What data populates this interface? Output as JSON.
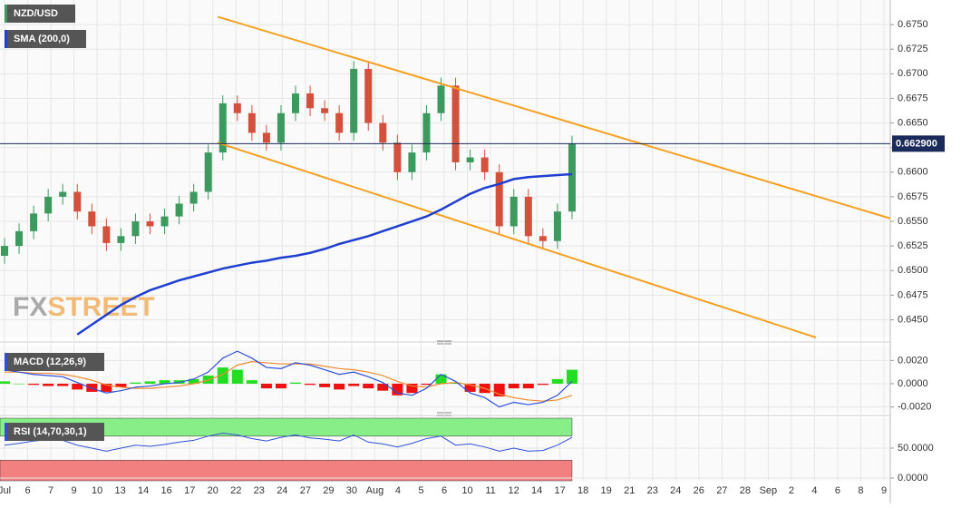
{
  "chart_data": [
    {
      "type": "candlestick",
      "title": "NZD/USD",
      "ylim": [
        0.6432,
        0.6775
      ],
      "yticks": [
        {
          "value": 0.645,
          "label": "0.6450"
        },
        {
          "value": 0.6475,
          "label": "0.6475"
        },
        {
          "value": 0.65,
          "label": "0.6500"
        },
        {
          "value": 0.6525,
          "label": "0.6525"
        },
        {
          "value": 0.655,
          "label": "0.6550"
        },
        {
          "value": 0.6575,
          "label": "0.6575"
        },
        {
          "value": 0.66,
          "label": "0.6600"
        },
        {
          "value": 0.6625,
          "label": "0.6625"
        },
        {
          "value": 0.665,
          "label": "0.6650"
        },
        {
          "value": 0.6675,
          "label": "0.6675"
        },
        {
          "value": 0.67,
          "label": "0.6700"
        },
        {
          "value": 0.6725,
          "label": "0.6725"
        },
        {
          "value": 0.675,
          "label": "0.6750"
        }
      ],
      "x_labels": [
        "Jul",
        "6",
        "7",
        "9",
        "10",
        "13",
        "14",
        "16",
        "17",
        "20",
        "22",
        "23",
        "24",
        "27",
        "29",
        "30",
        "Aug",
        "4",
        "5",
        "6",
        "10",
        "11",
        "12",
        "14",
        "17",
        "18",
        "19",
        "21",
        "23",
        "24",
        "26",
        "27",
        "28",
        "Sep",
        "2",
        "4",
        "6",
        "8",
        "9"
      ],
      "open": [
        0.6515,
        0.6525,
        0.654,
        0.6558,
        0.6575,
        0.658,
        0.656,
        0.6545,
        0.6528,
        0.6535,
        0.655,
        0.6545,
        0.6555,
        0.6568,
        0.658,
        0.662,
        0.667,
        0.666,
        0.664,
        0.663,
        0.666,
        0.668,
        0.6665,
        0.666,
        0.664,
        0.6705,
        0.665,
        0.663,
        0.66,
        0.662,
        0.666,
        0.6688,
        0.661,
        0.6615,
        0.66,
        0.6545,
        0.6575,
        0.6535,
        0.653,
        0.656
      ],
      "high": [
        0.6533,
        0.6548,
        0.6566,
        0.6583,
        0.6588,
        0.6588,
        0.6568,
        0.6553,
        0.6543,
        0.6558,
        0.6558,
        0.6563,
        0.6576,
        0.6588,
        0.6628,
        0.6678,
        0.6678,
        0.6668,
        0.6648,
        0.6668,
        0.6688,
        0.6688,
        0.6673,
        0.6668,
        0.6713,
        0.6713,
        0.6658,
        0.6638,
        0.6628,
        0.6668,
        0.6696,
        0.6696,
        0.6623,
        0.6623,
        0.6608,
        0.6583,
        0.6583,
        0.6543,
        0.6568,
        0.6637
      ],
      "low": [
        0.6507,
        0.6517,
        0.6532,
        0.655,
        0.6567,
        0.6552,
        0.6537,
        0.652,
        0.652,
        0.6527,
        0.6537,
        0.6537,
        0.6547,
        0.656,
        0.6572,
        0.6612,
        0.6652,
        0.6632,
        0.6622,
        0.6622,
        0.6652,
        0.6657,
        0.6652,
        0.6632,
        0.6632,
        0.6642,
        0.6622,
        0.6592,
        0.6592,
        0.6612,
        0.6652,
        0.6602,
        0.6602,
        0.6592,
        0.6537,
        0.6537,
        0.6527,
        0.6522,
        0.6522,
        0.6552
      ],
      "close": [
        0.6525,
        0.654,
        0.6558,
        0.6575,
        0.658,
        0.656,
        0.6545,
        0.6528,
        0.6535,
        0.655,
        0.6545,
        0.6555,
        0.6568,
        0.658,
        0.662,
        0.667,
        0.666,
        0.664,
        0.663,
        0.666,
        0.668,
        0.6665,
        0.666,
        0.664,
        0.6705,
        0.665,
        0.663,
        0.66,
        0.662,
        0.666,
        0.6688,
        0.661,
        0.6615,
        0.66,
        0.6545,
        0.6575,
        0.6535,
        0.653,
        0.656,
        0.6629
      ],
      "up_color": "#3c9a5f",
      "down_color": "#d2503c",
      "series": [
        {
          "name": "SMA (200,0)",
          "color": "#1f3fd0",
          "values": [
            null,
            null,
            null,
            null,
            null,
            0.6435,
            0.6445,
            0.6455,
            0.6465,
            0.6473,
            0.648,
            0.6485,
            0.649,
            0.6494,
            0.6498,
            0.6502,
            0.6505,
            0.6508,
            0.651,
            0.6513,
            0.6515,
            0.6518,
            0.6522,
            0.6527,
            0.6531,
            0.6535,
            0.654,
            0.6545,
            0.655,
            0.6555,
            0.6562,
            0.657,
            0.6578,
            0.6584,
            0.6588,
            0.6593,
            0.6595,
            0.6596,
            0.6597,
            0.6598
          ]
        }
      ],
      "trendlines": [
        {
          "color": "#f5a020",
          "start": 0.6758,
          "end": 0.6537
        },
        {
          "color": "#f5a020",
          "start": 0.663,
          "end": 0.6432
        }
      ],
      "last_price": {
        "value": 0.6629,
        "label": "0.662900"
      },
      "watermark": [
        "FX",
        "STREET"
      ],
      "grid": true
    },
    {
      "type": "macd",
      "title": "MACD (12,26,9)",
      "ylim": [
        -0.0025,
        0.0032
      ],
      "yticks": [
        {
          "value": 0.002,
          "label": "0.0020"
        },
        {
          "value": 0,
          "label": "0.0000"
        },
        {
          "value": -0.002,
          "label": "-0.0020"
        }
      ],
      "macd": {
        "color": "#2f4fd8",
        "values": [
          0.0012,
          0.001,
          0.0008,
          0.0007,
          0.0006,
          0.0001,
          -0.0004,
          -0.0008,
          -0.0006,
          -0.0003,
          -0.0002,
          0.0,
          0.0001,
          0.0004,
          0.001,
          0.0022,
          0.0028,
          0.0022,
          0.0014,
          0.0013,
          0.0018,
          0.0016,
          0.0012,
          0.0008,
          0.001,
          0.0006,
          0.0001,
          -0.0008,
          -0.001,
          -0.0004,
          0.0008,
          0.0002,
          -0.0008,
          -0.0012,
          -0.002,
          -0.0016,
          -0.0018,
          -0.0016,
          -0.001,
          0.0002
        ]
      },
      "signal": {
        "color": "#f08a30",
        "values": [
          0.001,
          0.001,
          0.0009,
          0.0009,
          0.0008,
          0.0006,
          0.0003,
          -0.0001,
          -0.0003,
          -0.0004,
          -0.0004,
          -0.0003,
          -0.0002,
          0.0,
          0.0003,
          0.0008,
          0.0016,
          0.0019,
          0.0018,
          0.0017,
          0.0017,
          0.0017,
          0.0015,
          0.0013,
          0.0012,
          0.001,
          0.0007,
          0.0002,
          -0.0002,
          -0.0003,
          0.0,
          0.0001,
          -0.0001,
          -0.0004,
          -0.0009,
          -0.0012,
          -0.0014,
          -0.0015,
          -0.0014,
          -0.001
        ]
      },
      "histogram": {
        "up_color": "#22dd22",
        "down_color": "#ee1111",
        "values": [
          0.0002,
          0.0,
          -0.0001,
          -0.0002,
          -0.0002,
          -0.0005,
          -0.0007,
          -0.0007,
          -0.0003,
          0.0001,
          0.0002,
          0.0003,
          0.0003,
          0.0004,
          0.0007,
          0.0014,
          0.0012,
          0.0003,
          -0.0004,
          -0.0004,
          0.0001,
          -0.0001,
          -0.0003,
          -0.0005,
          -0.0002,
          -0.0004,
          -0.0006,
          -0.001,
          -0.0008,
          -0.0001,
          0.0008,
          0.0001,
          -0.0007,
          -0.0008,
          -0.0011,
          -0.0004,
          -0.0004,
          -0.0001,
          0.0004,
          0.0012
        ]
      }
    },
    {
      "type": "rsi",
      "title": "RSI (14,70,30,1)",
      "ylim": [
        -4.5,
        100
      ],
      "yticks": [
        {
          "value": 50,
          "label": "50.0000"
        },
        {
          "value": 0,
          "label": "0.0000"
        }
      ],
      "overbought": 70,
      "oversold": 30,
      "overbought_color": "#88ee88",
      "oversold_color": "#f28080",
      "color": "#2f4fd8",
      "values": [
        55,
        58,
        62,
        64,
        63,
        55,
        50,
        45,
        50,
        55,
        53,
        56,
        60,
        63,
        70,
        75,
        72,
        66,
        62,
        68,
        72,
        67,
        65,
        62,
        72,
        60,
        57,
        52,
        58,
        66,
        70,
        55,
        57,
        52,
        45,
        50,
        45,
        46,
        55,
        68
      ]
    }
  ]
}
